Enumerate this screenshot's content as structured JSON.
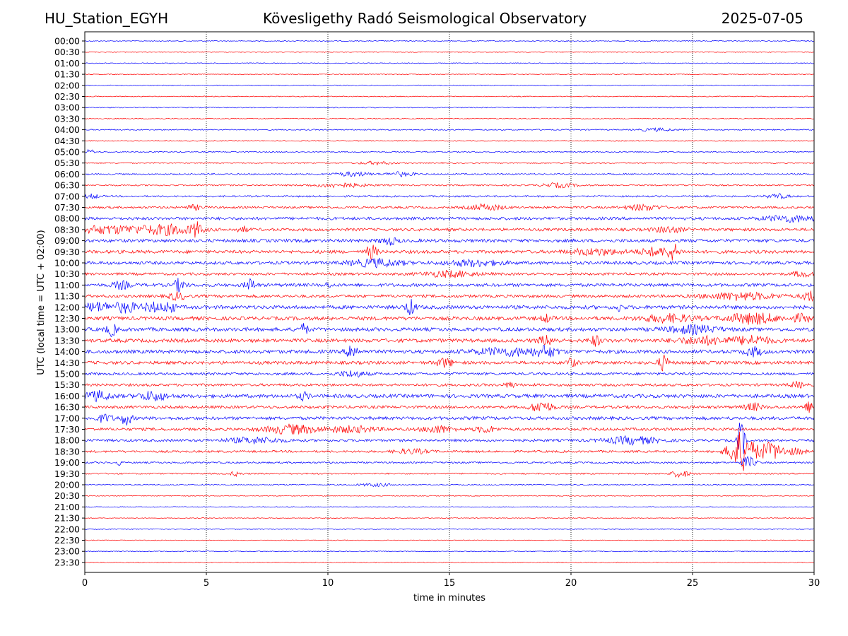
{
  "header": {
    "station": "HU_Station_EGYH",
    "title": "Kövesligethy Radó Seismological Observatory",
    "date": "2025-07-05"
  },
  "chart_data": {
    "type": "line",
    "xlabel": "time in minutes",
    "ylabel": "UTC (local time = UTC + 02:00)",
    "xlim": [
      0,
      30
    ],
    "xticks": [
      0,
      5,
      10,
      15,
      20,
      25,
      30
    ],
    "grid": "vertical dotted lines at every 5 minutes",
    "colors": {
      "even_rows": "#0000ff",
      "odd_rows": "#ff0000",
      "grid": "#000000"
    },
    "rows": [
      {
        "label": "00:00",
        "noise": 0.6,
        "bursts": []
      },
      {
        "label": "00:30",
        "noise": 0.6,
        "bursts": []
      },
      {
        "label": "01:00",
        "noise": 0.6,
        "bursts": []
      },
      {
        "label": "01:30",
        "noise": 0.5,
        "bursts": []
      },
      {
        "label": "02:00",
        "noise": 0.6,
        "bursts": []
      },
      {
        "label": "02:30",
        "noise": 0.6,
        "bursts": []
      },
      {
        "label": "03:00",
        "noise": 0.7,
        "bursts": []
      },
      {
        "label": "03:30",
        "noise": 0.6,
        "bursts": []
      },
      {
        "label": "04:00",
        "noise": 0.8,
        "bursts": [
          {
            "t": 23.5,
            "a": 2,
            "w": 1.0
          }
        ]
      },
      {
        "label": "04:30",
        "noise": 0.7,
        "bursts": []
      },
      {
        "label": "05:00",
        "noise": 0.8,
        "bursts": [
          {
            "t": 0.2,
            "a": 3,
            "w": 0.3
          }
        ]
      },
      {
        "label": "05:30",
        "noise": 0.8,
        "bursts": [
          {
            "t": 12.0,
            "a": 2,
            "w": 1.0
          }
        ]
      },
      {
        "label": "06:00",
        "noise": 1.0,
        "bursts": [
          {
            "t": 11.0,
            "a": 3,
            "w": 1.0
          },
          {
            "t": 13.0,
            "a": 3,
            "w": 0.8
          }
        ]
      },
      {
        "label": "06:30",
        "noise": 1.0,
        "bursts": [
          {
            "t": 10.5,
            "a": 3,
            "w": 1.5
          },
          {
            "t": 19.5,
            "a": 3,
            "w": 1.0
          }
        ]
      },
      {
        "label": "07:00",
        "noise": 1.2,
        "bursts": [
          {
            "t": 0.3,
            "a": 3,
            "w": 0.4
          },
          {
            "t": 28.5,
            "a": 3,
            "w": 0.6
          }
        ]
      },
      {
        "label": "07:30",
        "noise": 1.5,
        "bursts": [
          {
            "t": 4.5,
            "a": 3,
            "w": 0.5
          },
          {
            "t": 16.5,
            "a": 4,
            "w": 1.0
          },
          {
            "t": 23.0,
            "a": 4,
            "w": 1.0
          }
        ]
      },
      {
        "label": "08:00",
        "noise": 2.0,
        "bursts": [
          {
            "t": 29.0,
            "a": 4,
            "w": 1.5
          }
        ]
      },
      {
        "label": "08:30",
        "noise": 2.0,
        "bursts": [
          {
            "t": 1.0,
            "a": 5,
            "w": 2.5
          },
          {
            "t": 3.5,
            "a": 6,
            "w": 1.5
          },
          {
            "t": 4.6,
            "a": 9,
            "w": 0.3
          },
          {
            "t": 6.5,
            "a": 4,
            "w": 0.3
          },
          {
            "t": 24.0,
            "a": 4,
            "w": 0.8
          }
        ]
      },
      {
        "label": "09:00",
        "noise": 2.2,
        "bursts": [
          {
            "t": 12.5,
            "a": 5,
            "w": 0.5
          }
        ]
      },
      {
        "label": "09:30",
        "noise": 2.2,
        "bursts": [
          {
            "t": 11.8,
            "a": 10,
            "w": 0.3
          },
          {
            "t": 21.0,
            "a": 4,
            "w": 1.5
          },
          {
            "t": 23.5,
            "a": 5,
            "w": 1.0
          },
          {
            "t": 24.2,
            "a": 10,
            "w": 0.3
          }
        ]
      },
      {
        "label": "10:00",
        "noise": 2.2,
        "bursts": [
          {
            "t": 12.0,
            "a": 5,
            "w": 1.5
          },
          {
            "t": 16.0,
            "a": 4,
            "w": 1.5
          }
        ]
      },
      {
        "label": "10:30",
        "noise": 1.8,
        "bursts": [
          {
            "t": 15.0,
            "a": 4,
            "w": 1.5
          },
          {
            "t": 29.5,
            "a": 4,
            "w": 0.5
          }
        ]
      },
      {
        "label": "11:00",
        "noise": 2.2,
        "bursts": [
          {
            "t": 1.5,
            "a": 5,
            "w": 0.5
          },
          {
            "t": 3.9,
            "a": 9,
            "w": 0.3
          },
          {
            "t": 6.8,
            "a": 8,
            "w": 0.3
          },
          {
            "t": 10.0,
            "a": 3,
            "w": 0.2
          }
        ]
      },
      {
        "label": "11:30",
        "noise": 2.0,
        "bursts": [
          {
            "t": 3.8,
            "a": 5,
            "w": 0.5
          },
          {
            "t": 27.0,
            "a": 5,
            "w": 2.0
          },
          {
            "t": 29.8,
            "a": 7,
            "w": 0.4
          }
        ]
      },
      {
        "label": "12:00",
        "noise": 2.5,
        "bursts": [
          {
            "t": 0.5,
            "a": 6,
            "w": 1.0
          },
          {
            "t": 1.7,
            "a": 7,
            "w": 0.6
          },
          {
            "t": 2.8,
            "a": 6,
            "w": 0.6
          },
          {
            "t": 3.5,
            "a": 8,
            "w": 0.3
          },
          {
            "t": 13.4,
            "a": 10,
            "w": 0.3
          },
          {
            "t": 22.0,
            "a": 5,
            "w": 0.2
          }
        ]
      },
      {
        "label": "12:30",
        "noise": 2.5,
        "bursts": [
          {
            "t": 19.0,
            "a": 5,
            "w": 0.3
          },
          {
            "t": 24.0,
            "a": 5,
            "w": 1.5
          },
          {
            "t": 27.5,
            "a": 7,
            "w": 1.5
          },
          {
            "t": 29.5,
            "a": 5,
            "w": 0.5
          }
        ]
      },
      {
        "label": "13:00",
        "noise": 2.5,
        "bursts": [
          {
            "t": 1.1,
            "a": 8,
            "w": 0.3
          },
          {
            "t": 9.0,
            "a": 7,
            "w": 0.3
          },
          {
            "t": 25.0,
            "a": 5,
            "w": 1.5
          }
        ]
      },
      {
        "label": "13:30",
        "noise": 2.5,
        "bursts": [
          {
            "t": 19.0,
            "a": 6,
            "w": 0.5
          },
          {
            "t": 21.0,
            "a": 7,
            "w": 0.3
          },
          {
            "t": 25.5,
            "a": 5,
            "w": 1.5
          },
          {
            "t": 27.5,
            "a": 6,
            "w": 1.0
          }
        ]
      },
      {
        "label": "14:00",
        "noise": 2.5,
        "bursts": [
          {
            "t": 11.0,
            "a": 12,
            "w": 0.3
          },
          {
            "t": 17.5,
            "a": 5,
            "w": 2.0
          },
          {
            "t": 19.0,
            "a": 6,
            "w": 0.6
          },
          {
            "t": 27.5,
            "a": 6,
            "w": 0.5
          }
        ]
      },
      {
        "label": "14:30",
        "noise": 2.2,
        "bursts": [
          {
            "t": 14.8,
            "a": 6,
            "w": 0.5
          },
          {
            "t": 20.0,
            "a": 6,
            "w": 0.3
          },
          {
            "t": 23.8,
            "a": 10,
            "w": 0.3
          }
        ]
      },
      {
        "label": "15:00",
        "noise": 1.8,
        "bursts": [
          {
            "t": 11.0,
            "a": 4,
            "w": 0.8
          }
        ]
      },
      {
        "label": "15:30",
        "noise": 1.8,
        "bursts": [
          {
            "t": 17.5,
            "a": 4,
            "w": 0.3
          },
          {
            "t": 29.3,
            "a": 4,
            "w": 0.4
          }
        ]
      },
      {
        "label": "16:00",
        "noise": 2.5,
        "bursts": [
          {
            "t": 0.5,
            "a": 6,
            "w": 0.8
          },
          {
            "t": 2.8,
            "a": 6,
            "w": 0.8
          },
          {
            "t": 9.0,
            "a": 5,
            "w": 0.3
          }
        ]
      },
      {
        "label": "16:30",
        "noise": 2.0,
        "bursts": [
          {
            "t": 18.8,
            "a": 8,
            "w": 0.6
          },
          {
            "t": 27.5,
            "a": 5,
            "w": 0.5
          },
          {
            "t": 29.8,
            "a": 7,
            "w": 0.3
          }
        ]
      },
      {
        "label": "17:00",
        "noise": 2.2,
        "bursts": [
          {
            "t": 0.8,
            "a": 5,
            "w": 0.5
          },
          {
            "t": 1.7,
            "a": 9,
            "w": 0.3
          }
        ]
      },
      {
        "label": "17:30",
        "noise": 2.0,
        "bursts": [
          {
            "t": 8.5,
            "a": 6,
            "w": 1.5
          },
          {
            "t": 11.0,
            "a": 4,
            "w": 1.5
          },
          {
            "t": 14.5,
            "a": 5,
            "w": 0.8
          },
          {
            "t": 16.5,
            "a": 4,
            "w": 0.6
          }
        ]
      },
      {
        "label": "18:00",
        "noise": 1.8,
        "bursts": [
          {
            "t": 7.0,
            "a": 4,
            "w": 1.5
          },
          {
            "t": 22.5,
            "a": 5,
            "w": 1.5
          },
          {
            "t": 27.0,
            "a": 30,
            "w": 0.2
          }
        ]
      },
      {
        "label": "18:30",
        "noise": 1.5,
        "bursts": [
          {
            "t": 13.5,
            "a": 3,
            "w": 1.0
          },
          {
            "t": 27.0,
            "a": 28,
            "w": 0.7
          },
          {
            "t": 28.2,
            "a": 12,
            "w": 0.8
          },
          {
            "t": 29.3,
            "a": 4,
            "w": 0.5
          }
        ]
      },
      {
        "label": "19:00",
        "noise": 1.2,
        "bursts": [
          {
            "t": 1.4,
            "a": 5,
            "w": 0.1
          },
          {
            "t": 27.3,
            "a": 8,
            "w": 0.4
          }
        ]
      },
      {
        "label": "19:30",
        "noise": 1.0,
        "bursts": [
          {
            "t": 6.2,
            "a": 3,
            "w": 0.3
          },
          {
            "t": 24.5,
            "a": 5,
            "w": 0.5
          }
        ]
      },
      {
        "label": "20:00",
        "noise": 0.8,
        "bursts": [
          {
            "t": 12.0,
            "a": 2,
            "w": 1.0
          }
        ]
      },
      {
        "label": "20:30",
        "noise": 0.6,
        "bursts": []
      },
      {
        "label": "21:00",
        "noise": 0.6,
        "bursts": []
      },
      {
        "label": "21:30",
        "noise": 0.5,
        "bursts": []
      },
      {
        "label": "22:00",
        "noise": 0.6,
        "bursts": []
      },
      {
        "label": "22:30",
        "noise": 0.5,
        "bursts": []
      },
      {
        "label": "23:00",
        "noise": 0.6,
        "bursts": []
      },
      {
        "label": "23:30",
        "noise": 0.6,
        "bursts": []
      }
    ]
  }
}
